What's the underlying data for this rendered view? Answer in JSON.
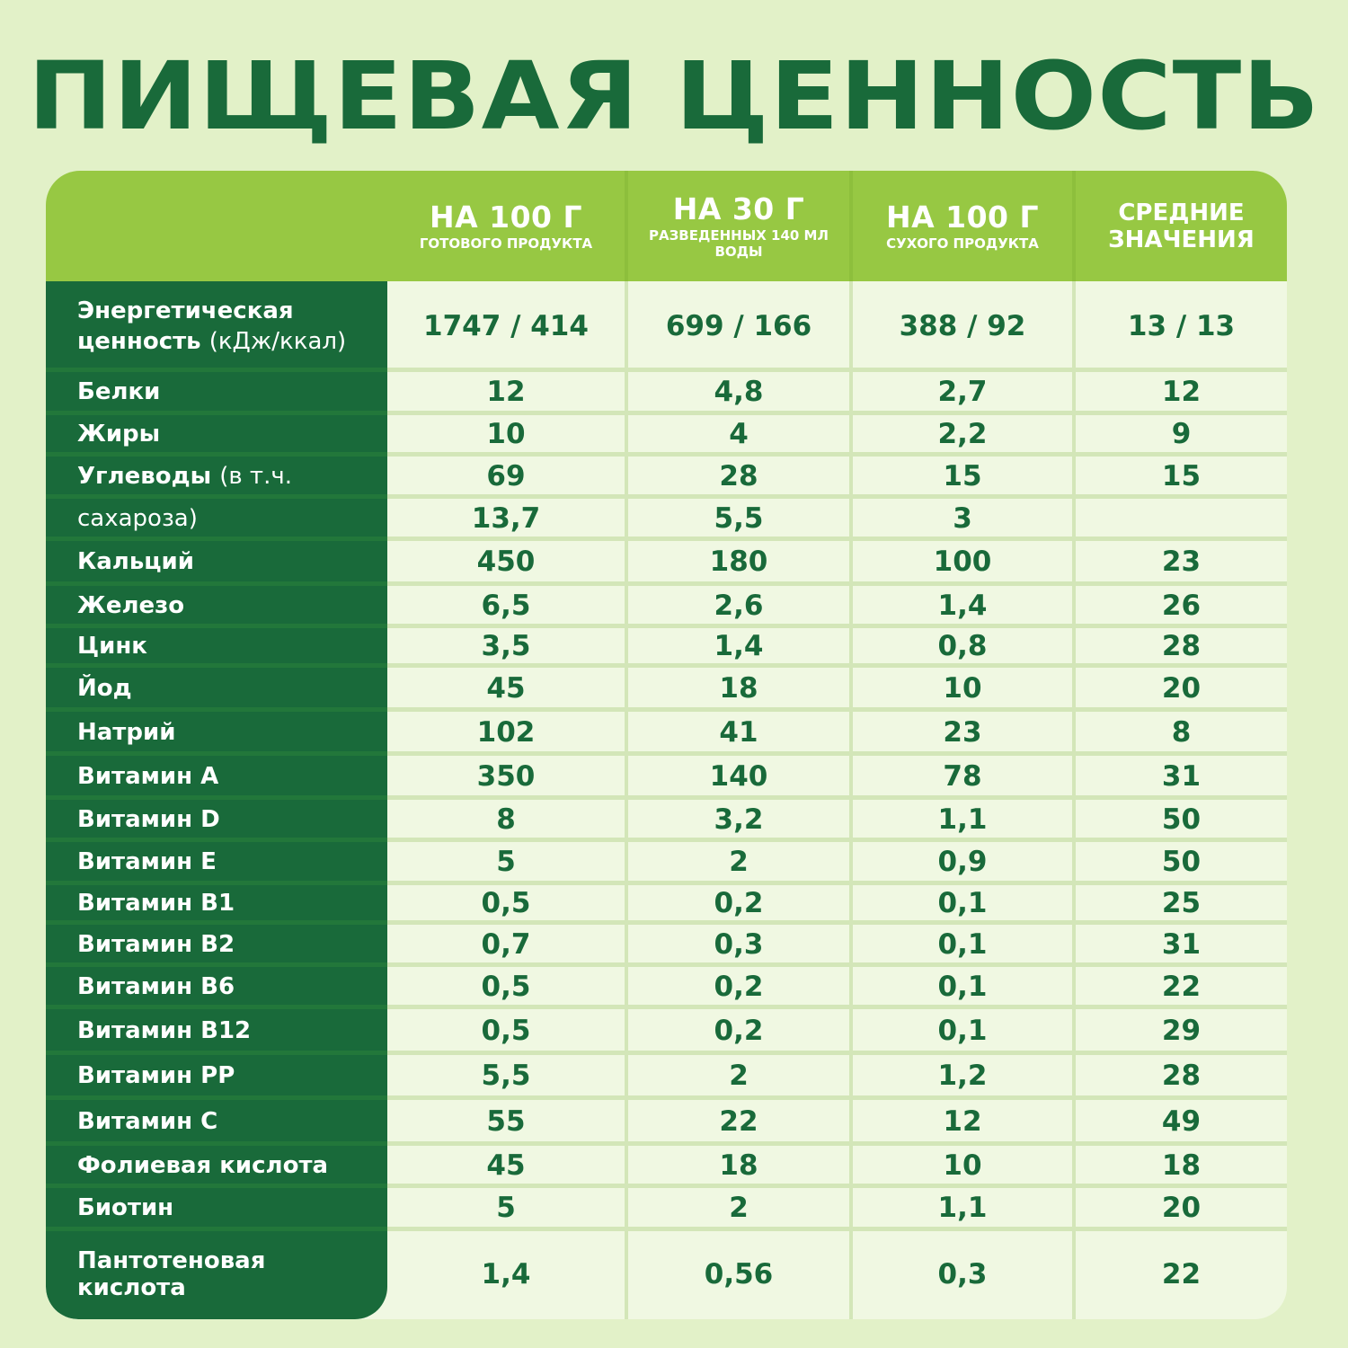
{
  "title": "ПИЩЕВАЯ ЦЕННОСТЬ",
  "colors": {
    "background": "#e2f1c8",
    "title": "#196a3a",
    "header_bg": "#97c843",
    "label_column_bg": "#196a3a",
    "cell_bg": "#f0f8e2",
    "grid_line": "#d3e6b8",
    "value_text": "#196a3a"
  },
  "columns": [
    {
      "main": "НА 100 Г",
      "sub": "ГОТОВОГО ПРОДУКТА"
    },
    {
      "main": "НА 30 Г",
      "sub": "РАЗВЕДЕННЫХ 140 МЛ ВОДЫ"
    },
    {
      "main": "НА 100 Г",
      "sub": "СУХОГО ПРОДУКТА"
    },
    {
      "main": "СРЕДНИЕ",
      "sub": "ЗНАЧЕНИЯ"
    }
  ],
  "rows": [
    {
      "label": "Энергетическая ценность",
      "label_note": "(кДж/ккал)",
      "values": [
        "1747 / 414",
        "699 / 166",
        "388 / 92",
        "13 / 13"
      ]
    },
    {
      "label": "Белки",
      "label_note": "",
      "values": [
        "12",
        "4,8",
        "2,7",
        "12"
      ]
    },
    {
      "label": "Жиры",
      "label_note": "",
      "values": [
        "10",
        "4",
        "2,2",
        "9"
      ]
    },
    {
      "label": "Углеводы",
      "label_note": "(в т.ч.",
      "values": [
        "69",
        "28",
        "15",
        "15"
      ]
    },
    {
      "label": "",
      "label_note": "сахароза)",
      "values": [
        "13,7",
        "5,5",
        "3",
        ""
      ]
    },
    {
      "label": "Кальций",
      "label_note": "",
      "values": [
        "450",
        "180",
        "100",
        "23"
      ]
    },
    {
      "label": "Железо",
      "label_note": "",
      "values": [
        "6,5",
        "2,6",
        "1,4",
        "26"
      ]
    },
    {
      "label": "Цинк",
      "label_note": "",
      "values": [
        "3,5",
        "1,4",
        "0,8",
        "28"
      ]
    },
    {
      "label": "Йод",
      "label_note": "",
      "values": [
        "45",
        "18",
        "10",
        "20"
      ]
    },
    {
      "label": "Натрий",
      "label_note": "",
      "values": [
        "102",
        "41",
        "23",
        "8"
      ]
    },
    {
      "label": "Витамин A",
      "label_note": "",
      "values": [
        "350",
        "140",
        "78",
        "31"
      ]
    },
    {
      "label": "Витамин D",
      "label_note": "",
      "values": [
        "8",
        "3,2",
        "1,1",
        "50"
      ]
    },
    {
      "label": "Витамин E",
      "label_note": "",
      "values": [
        "5",
        "2",
        "0,9",
        "50"
      ]
    },
    {
      "label": "Витамин B1",
      "label_note": "",
      "values": [
        "0,5",
        "0,2",
        "0,1",
        "25"
      ]
    },
    {
      "label": "Витамин B2",
      "label_note": "",
      "values": [
        "0,7",
        "0,3",
        "0,1",
        "31"
      ]
    },
    {
      "label": "Витамин B6",
      "label_note": "",
      "values": [
        "0,5",
        "0,2",
        "0,1",
        "22"
      ]
    },
    {
      "label": "Витамин B12",
      "label_note": "",
      "values": [
        "0,5",
        "0,2",
        "0,1",
        "29"
      ]
    },
    {
      "label": "Витамин PP",
      "label_note": "",
      "values": [
        "5,5",
        "2",
        "1,2",
        "28"
      ]
    },
    {
      "label": "Витамин C",
      "label_note": "",
      "values": [
        "55",
        "22",
        "12",
        "49"
      ]
    },
    {
      "label": "Фолиевая кислота",
      "label_note": "",
      "values": [
        "45",
        "18",
        "10",
        "18"
      ]
    },
    {
      "label": "Биотин",
      "label_note": "",
      "values": [
        "5",
        "2",
        "1,1",
        "20"
      ]
    },
    {
      "label": "Пантотеновая кислота",
      "label_note": "",
      "values": [
        "1,4",
        "0,56",
        "0,3",
        "22"
      ]
    }
  ]
}
